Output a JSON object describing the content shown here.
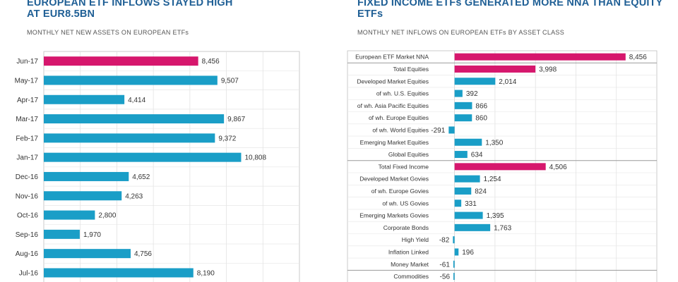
{
  "colors": {
    "primary": "#1a9ec7",
    "highlight": "#d6176d",
    "title": "#1f5f95"
  },
  "left": {
    "title_line1": "EUROPEAN ETF INFLOWS STAYED HIGH",
    "title_line2": "AT EUR8.5BN",
    "subtitle": "MONTHLY NET NEW ASSETS ON EUROPEAN ETFs"
  },
  "right": {
    "title_line1": "FIXED INCOME ETFs GENERATED MORE NNA THAN EQUITY",
    "title_line2": "ETFs",
    "subtitle": "MONTHLY NET INFLOWS ON EUROPEAN ETFs BY ASSET CLASS"
  },
  "chart_data": [
    {
      "type": "bar",
      "orientation": "horizontal",
      "title": "EUROPEAN ETF INFLOWS STAYED HIGH AT EUR8.5BN",
      "subtitle": "MONTHLY NET NEW ASSETS ON EUROPEAN ETFs",
      "categories": [
        "Jun-17",
        "May-17",
        "Apr-17",
        "Mar-17",
        "Feb-17",
        "Jan-17",
        "Dec-16",
        "Nov-16",
        "Oct-16",
        "Sep-16",
        "Aug-16",
        "Jul-16"
      ],
      "values": [
        8456,
        9507,
        4414,
        9867,
        9372,
        10808,
        4652,
        4263,
        2800,
        1970,
        4756,
        8190
      ],
      "value_labels": [
        "8,456",
        "9,507",
        "4,414",
        "9,867",
        "9,372",
        "10,808",
        "4,652",
        "4,263",
        "2,800",
        "1,970",
        "4,756",
        "8,190"
      ],
      "highlight_index": 0,
      "xlim": [
        0,
        14000
      ],
      "grid": true
    },
    {
      "type": "bar",
      "orientation": "horizontal",
      "title": "FIXED INCOME ETFs GENERATED MORE NNA THAN EQUITY ETFs",
      "subtitle": "MONTHLY NET INFLOWS ON EUROPEAN ETFs BY ASSET CLASS",
      "categories": [
        "European ETF Market NNA",
        "Total Equities",
        "Developed Market Equities",
        "of wh. U.S. Equities",
        "of wh. Asia Pacific Equities",
        "of wh. Europe Equities",
        "of wh. World Equities",
        "Emerging Market Equities",
        "Global Equities",
        "Total Fixed Income",
        "Developed Market Govies",
        "of wh. Europe Govies",
        "of wh. US Govies",
        "Emerging Markets Govies",
        "Corporate Bonds",
        "High Yield",
        "Inflation Linked",
        "Money Market",
        "Commodities"
      ],
      "values": [
        8456,
        3998,
        2014,
        392,
        866,
        860,
        -291,
        1350,
        634,
        4506,
        1254,
        824,
        331,
        1395,
        1763,
        -82,
        196,
        -61,
        -56
      ],
      "value_labels": [
        "8,456",
        "3,998",
        "2,014",
        "392",
        "866",
        "860",
        "-291",
        "1,350",
        "634",
        "4,506",
        "1,254",
        "824",
        "331",
        "1,395",
        "1,763",
        "-82",
        "196",
        "-61",
        "-56"
      ],
      "highlighted": [
        0,
        1,
        9
      ],
      "section_starts": [
        1,
        9,
        18
      ],
      "xlim": [
        -1000,
        10000
      ],
      "grid": true
    }
  ]
}
